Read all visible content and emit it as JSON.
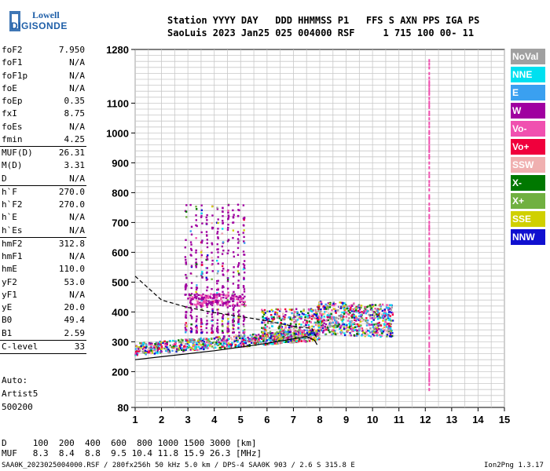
{
  "logo": {
    "line1": "Lowell",
    "line2": "DIGISONDE"
  },
  "header": {
    "labels": "Station YYYY DAY   DDD HHMMSS P1   FFS S AXN PPS IGA PS",
    "values": "SaoLuis 2023 Jan25 025 004000 RSF     1 715 100 00- 11"
  },
  "params": [
    {
      "k": "foF2",
      "v": "7.950"
    },
    {
      "k": "foF1",
      "v": "N/A"
    },
    {
      "k": "foF1p",
      "v": "N/A"
    },
    {
      "k": "foE",
      "v": "N/A"
    },
    {
      "k": "foEp",
      "v": "0.35"
    },
    {
      "k": "fxI",
      "v": "8.75"
    },
    {
      "k": "foEs",
      "v": "N/A"
    },
    {
      "k": "fmin",
      "v": "4.25"
    },
    {
      "k": "MUF(D)",
      "v": "26.31"
    },
    {
      "k": "M(D)",
      "v": "3.31"
    },
    {
      "k": "D",
      "v": "N/A"
    },
    {
      "k": "h`F",
      "v": "270.0"
    },
    {
      "k": "h`F2",
      "v": "270.0"
    },
    {
      "k": "h`E",
      "v": "N/A"
    },
    {
      "k": "h`Es",
      "v": "N/A"
    },
    {
      "k": "hmF2",
      "v": "312.8"
    },
    {
      "k": "hmF1",
      "v": "N/A"
    },
    {
      "k": "hmE",
      "v": "110.0"
    },
    {
      "k": "yF2",
      "v": "53.0"
    },
    {
      "k": "yF1",
      "v": "N/A"
    },
    {
      "k": "yE",
      "v": "20.0"
    },
    {
      "k": "B0",
      "v": "49.4"
    },
    {
      "k": "B1",
      "v": "2.59"
    },
    {
      "k": "C-level",
      "v": "33"
    }
  ],
  "auto": {
    "line1": "Auto:",
    "line2": "Artist5",
    "line3": "500200"
  },
  "legend": [
    {
      "label": "NoVal",
      "color": "#a0a0a0"
    },
    {
      "label": "NNE",
      "color": "#00e0f0"
    },
    {
      "label": "E",
      "color": "#3aa0f0"
    },
    {
      "label": "W",
      "color": "#a000a0"
    },
    {
      "label": "Vo-",
      "color": "#f050b0"
    },
    {
      "label": "Vo+",
      "color": "#f0003c"
    },
    {
      "label": "SSW",
      "color": "#f0b0b0"
    },
    {
      "label": "X-",
      "color": "#007800"
    },
    {
      "label": "X+",
      "color": "#70b040"
    },
    {
      "label": "SSE",
      "color": "#d0d000"
    },
    {
      "label": "NNW",
      "color": "#1010d0"
    }
  ],
  "muf_table": {
    "d_row": "D     100  200  400  600  800 1000 1500 3000 [km]",
    "muf_row": "MUF   8.3  8.4  8.8  9.5 10.4 11.8 15.9 26.3 [MHz]"
  },
  "footer": {
    "left": "SAA0K_2023025004000.RSF / 280fx256h 50 kHz 5.0 km / DPS-4 SAA0K 903 / 2.6 S 315.8 E",
    "right": "Ion2Png 1.3.17"
  },
  "chart_data": {
    "type": "scatter",
    "xlabel": "",
    "ylabel": "",
    "xlim": [
      1,
      15
    ],
    "ylim": [
      80,
      1280
    ],
    "x_ticks": [
      1,
      2,
      3,
      4,
      5,
      6,
      7,
      8,
      9,
      10,
      11,
      12,
      13,
      14,
      15
    ],
    "y_ticks": [
      80,
      200,
      300,
      400,
      500,
      600,
      700,
      800,
      900,
      1000,
      1100,
      1280
    ],
    "grid": true,
    "traces": [
      {
        "name": "",
        "style": "solid",
        "x": [
          1,
          2,
          3,
          4,
          5,
          6,
          7,
          7.5,
          7.8,
          7.9
        ],
        "y": [
          240,
          250,
          260,
          270,
          282,
          295,
          310,
          318,
          305,
          290
        ]
      },
      {
        "name": "",
        "style": "dashed",
        "x": [
          1,
          2,
          3,
          4,
          5,
          6,
          7,
          7.7,
          7.9
        ],
        "y": [
          520,
          440,
          415,
          398,
          385,
          370,
          352,
          345,
          310
        ]
      }
    ],
    "echo_clusters": [
      {
        "x_range": [
          1,
          8
        ],
        "y_range": [
          255,
          305
        ],
        "kind": "trace"
      },
      {
        "x_range": [
          2.9,
          5.2
        ],
        "y_range": [
          400,
          760
        ],
        "kind": "vertical-smear"
      },
      {
        "x_range": [
          7.9,
          10.8
        ],
        "y_range": [
          330,
          470
        ],
        "kind": "blob"
      },
      {
        "x": 12.15,
        "y_range": [
          140,
          1260
        ],
        "kind": "interference-line"
      }
    ]
  }
}
